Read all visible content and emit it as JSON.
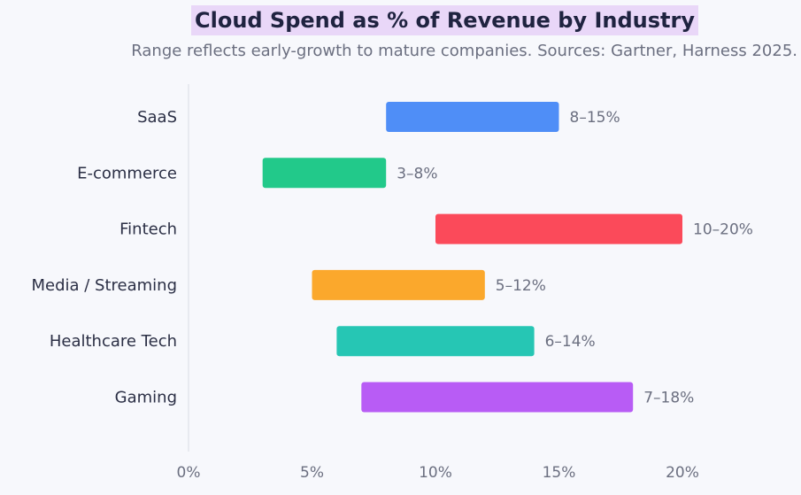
{
  "chart_data": {
    "type": "bar",
    "orientation": "horizontal-range",
    "title": "Cloud Spend as % of Revenue by Industry",
    "subtitle": "Range reflects early-growth to mature companies. Sources: Gartner, Harness 2025.",
    "xlim": [
      0,
      20
    ],
    "xticks": [
      "0%",
      "5%",
      "10%",
      "15%",
      "20%"
    ],
    "grid": false,
    "categories": [
      "SaaS",
      "E-commerce",
      "Fintech",
      "Media / Streaming",
      "Healthcare Tech",
      "Gaming"
    ],
    "ranges": [
      {
        "category": "SaaS",
        "low": 8,
        "high": 15,
        "label": "8–15%",
        "color": "#4f8ef7"
      },
      {
        "category": "E-commerce",
        "low": 3,
        "high": 8,
        "label": "3–8%",
        "color": "#22c98a"
      },
      {
        "category": "Fintech",
        "low": 10,
        "high": 20,
        "label": "10–20%",
        "color": "#fb4a5a"
      },
      {
        "category": "Media / Streaming",
        "low": 5,
        "high": 12,
        "label": "5–12%",
        "color": "#fba82c"
      },
      {
        "category": "Healthcare Tech",
        "low": 6,
        "high": 14,
        "label": "6–14%",
        "color": "#26c6b4"
      },
      {
        "category": "Gaming",
        "low": 7,
        "high": 18,
        "label": "7–18%",
        "color": "#b85cf5"
      }
    ]
  }
}
